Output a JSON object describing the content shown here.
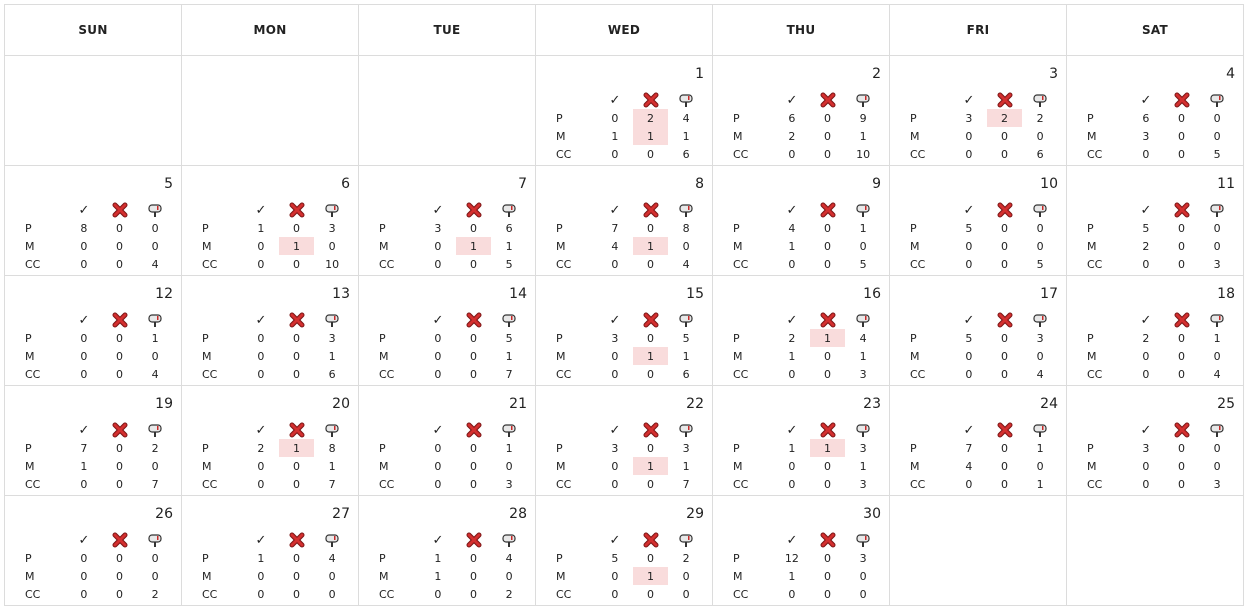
{
  "headers": [
    "SUN",
    "MON",
    "TUE",
    "WED",
    "THU",
    "FRI",
    "SAT"
  ],
  "row_labels": [
    "P",
    "M",
    "CC"
  ],
  "icons": {
    "accepted": "check-icon",
    "rejected": "red-x-icon",
    "mailbox": "mailbox-icon"
  },
  "colors": {
    "highlight": "#f9dcdc",
    "reject_red": "#c62828"
  },
  "days": [
    {
      "d": "1",
      "v": [
        [
          "0",
          "2",
          "4"
        ],
        [
          "1",
          "1",
          "1"
        ],
        [
          "0",
          "0",
          "6"
        ]
      ],
      "hl": [
        1,
        1,
        0
      ]
    },
    {
      "d": "2",
      "v": [
        [
          "6",
          "0",
          "9"
        ],
        [
          "2",
          "0",
          "1"
        ],
        [
          "0",
          "0",
          "10"
        ]
      ],
      "hl": [
        0,
        0,
        0
      ]
    },
    {
      "d": "3",
      "v": [
        [
          "3",
          "2",
          "2"
        ],
        [
          "0",
          "0",
          "0"
        ],
        [
          "0",
          "0",
          "6"
        ]
      ],
      "hl": [
        1,
        0,
        0
      ]
    },
    {
      "d": "4",
      "v": [
        [
          "6",
          "0",
          "0"
        ],
        [
          "3",
          "0",
          "0"
        ],
        [
          "0",
          "0",
          "5"
        ]
      ],
      "hl": [
        0,
        0,
        0
      ]
    },
    {
      "d": "5",
      "v": [
        [
          "8",
          "0",
          "0"
        ],
        [
          "0",
          "0",
          "0"
        ],
        [
          "0",
          "0",
          "4"
        ]
      ],
      "hl": [
        0,
        0,
        0
      ]
    },
    {
      "d": "6",
      "v": [
        [
          "1",
          "0",
          "3"
        ],
        [
          "0",
          "1",
          "0"
        ],
        [
          "0",
          "0",
          "10"
        ]
      ],
      "hl": [
        0,
        1,
        0
      ]
    },
    {
      "d": "7",
      "v": [
        [
          "3",
          "0",
          "6"
        ],
        [
          "0",
          "1",
          "1"
        ],
        [
          "0",
          "0",
          "5"
        ]
      ],
      "hl": [
        0,
        1,
        0
      ]
    },
    {
      "d": "8",
      "v": [
        [
          "7",
          "0",
          "8"
        ],
        [
          "4",
          "1",
          "0"
        ],
        [
          "0",
          "0",
          "4"
        ]
      ],
      "hl": [
        0,
        1,
        0
      ]
    },
    {
      "d": "9",
      "v": [
        [
          "4",
          "0",
          "1"
        ],
        [
          "1",
          "0",
          "0"
        ],
        [
          "0",
          "0",
          "5"
        ]
      ],
      "hl": [
        0,
        0,
        0
      ]
    },
    {
      "d": "10",
      "v": [
        [
          "5",
          "0",
          "0"
        ],
        [
          "0",
          "0",
          "0"
        ],
        [
          "0",
          "0",
          "5"
        ]
      ],
      "hl": [
        0,
        0,
        0
      ]
    },
    {
      "d": "11",
      "v": [
        [
          "5",
          "0",
          "0"
        ],
        [
          "2",
          "0",
          "0"
        ],
        [
          "0",
          "0",
          "3"
        ]
      ],
      "hl": [
        0,
        0,
        0
      ]
    },
    {
      "d": "12",
      "v": [
        [
          "0",
          "0",
          "1"
        ],
        [
          "0",
          "0",
          "0"
        ],
        [
          "0",
          "0",
          "4"
        ]
      ],
      "hl": [
        0,
        0,
        0
      ]
    },
    {
      "d": "13",
      "v": [
        [
          "0",
          "0",
          "3"
        ],
        [
          "0",
          "0",
          "1"
        ],
        [
          "0",
          "0",
          "6"
        ]
      ],
      "hl": [
        0,
        0,
        0
      ]
    },
    {
      "d": "14",
      "v": [
        [
          "0",
          "0",
          "5"
        ],
        [
          "0",
          "0",
          "1"
        ],
        [
          "0",
          "0",
          "7"
        ]
      ],
      "hl": [
        0,
        0,
        0
      ]
    },
    {
      "d": "15",
      "v": [
        [
          "3",
          "0",
          "5"
        ],
        [
          "0",
          "1",
          "1"
        ],
        [
          "0",
          "0",
          "6"
        ]
      ],
      "hl": [
        0,
        1,
        0
      ]
    },
    {
      "d": "16",
      "v": [
        [
          "2",
          "1",
          "4"
        ],
        [
          "1",
          "0",
          "1"
        ],
        [
          "0",
          "0",
          "3"
        ]
      ],
      "hl": [
        1,
        0,
        0
      ]
    },
    {
      "d": "17",
      "v": [
        [
          "5",
          "0",
          "3"
        ],
        [
          "0",
          "0",
          "0"
        ],
        [
          "0",
          "0",
          "4"
        ]
      ],
      "hl": [
        0,
        0,
        0
      ]
    },
    {
      "d": "18",
      "v": [
        [
          "2",
          "0",
          "1"
        ],
        [
          "0",
          "0",
          "0"
        ],
        [
          "0",
          "0",
          "4"
        ]
      ],
      "hl": [
        0,
        0,
        0
      ]
    },
    {
      "d": "19",
      "v": [
        [
          "7",
          "0",
          "2"
        ],
        [
          "1",
          "0",
          "0"
        ],
        [
          "0",
          "0",
          "7"
        ]
      ],
      "hl": [
        0,
        0,
        0
      ]
    },
    {
      "d": "20",
      "v": [
        [
          "2",
          "1",
          "8"
        ],
        [
          "0",
          "0",
          "1"
        ],
        [
          "0",
          "0",
          "7"
        ]
      ],
      "hl": [
        1,
        0,
        0
      ]
    },
    {
      "d": "21",
      "v": [
        [
          "0",
          "0",
          "1"
        ],
        [
          "0",
          "0",
          "0"
        ],
        [
          "0",
          "0",
          "3"
        ]
      ],
      "hl": [
        0,
        0,
        0
      ]
    },
    {
      "d": "22",
      "v": [
        [
          "3",
          "0",
          "3"
        ],
        [
          "0",
          "1",
          "1"
        ],
        [
          "0",
          "0",
          "7"
        ]
      ],
      "hl": [
        0,
        1,
        0
      ]
    },
    {
      "d": "23",
      "v": [
        [
          "1",
          "1",
          "3"
        ],
        [
          "0",
          "0",
          "1"
        ],
        [
          "0",
          "0",
          "3"
        ]
      ],
      "hl": [
        1,
        0,
        0
      ]
    },
    {
      "d": "24",
      "v": [
        [
          "7",
          "0",
          "1"
        ],
        [
          "4",
          "0",
          "0"
        ],
        [
          "0",
          "0",
          "1"
        ]
      ],
      "hl": [
        0,
        0,
        0
      ]
    },
    {
      "d": "25",
      "v": [
        [
          "3",
          "0",
          "0"
        ],
        [
          "0",
          "0",
          "0"
        ],
        [
          "0",
          "0",
          "3"
        ]
      ],
      "hl": [
        0,
        0,
        0
      ]
    },
    {
      "d": "26",
      "v": [
        [
          "0",
          "0",
          "0"
        ],
        [
          "0",
          "0",
          "0"
        ],
        [
          "0",
          "0",
          "2"
        ]
      ],
      "hl": [
        0,
        0,
        0
      ]
    },
    {
      "d": "27",
      "v": [
        [
          "1",
          "0",
          "4"
        ],
        [
          "0",
          "0",
          "0"
        ],
        [
          "0",
          "0",
          "0"
        ]
      ],
      "hl": [
        0,
        0,
        0
      ]
    },
    {
      "d": "28",
      "v": [
        [
          "1",
          "0",
          "4"
        ],
        [
          "1",
          "0",
          "0"
        ],
        [
          "0",
          "0",
          "2"
        ]
      ],
      "hl": [
        0,
        0,
        0
      ]
    },
    {
      "d": "29",
      "v": [
        [
          "5",
          "0",
          "2"
        ],
        [
          "0",
          "1",
          "0"
        ],
        [
          "0",
          "0",
          "0"
        ]
      ],
      "hl": [
        0,
        1,
        0
      ]
    },
    {
      "d": "30",
      "v": [
        [
          "12",
          "0",
          "3"
        ],
        [
          "1",
          "0",
          "0"
        ],
        [
          "0",
          "0",
          "0"
        ]
      ],
      "hl": [
        0,
        0,
        0
      ]
    }
  ],
  "first_weekday": 3,
  "weeks": 5
}
